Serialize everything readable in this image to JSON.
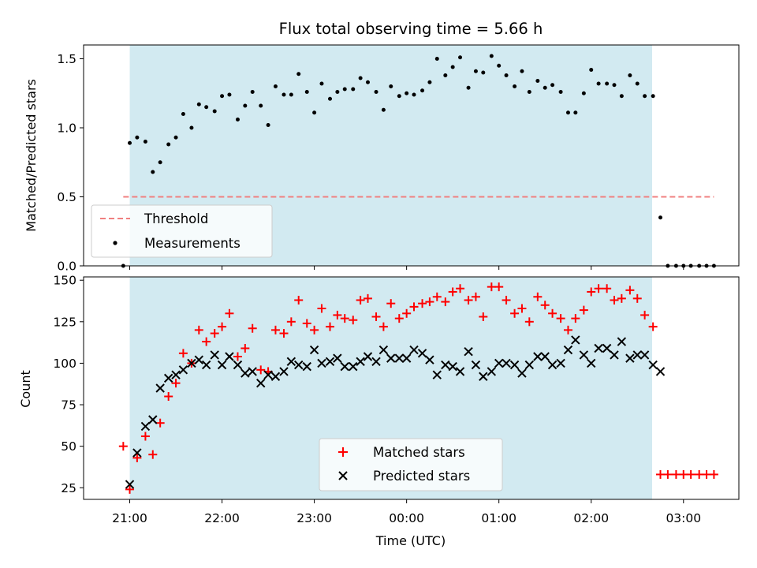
{
  "chart_data": [
    {
      "type": "scatter",
      "title": "Flux total observing time = 5.66 h",
      "xlabel": "",
      "ylabel": "Matched/Predicted stars",
      "ylim": [
        0,
        1.6
      ],
      "yticks": [
        "0.0",
        "0.5",
        "1.0",
        "1.5"
      ],
      "xlim": [
        20.5,
        27.6
      ],
      "shaded_interval": [
        21.0,
        26.66
      ],
      "shaded_color": "#add8e6",
      "legend_placement": "lower-left",
      "threshold": {
        "name": "Threshold",
        "value": 0.5,
        "x_range": [
          20.93,
          27.33
        ],
        "color": "#f08080"
      },
      "series": [
        {
          "name": "Measurements",
          "color": "#000000",
          "x": [
            20.93,
            21.0,
            21.08,
            21.17,
            21.25,
            21.33,
            21.42,
            21.5,
            21.58,
            21.67,
            21.75,
            21.83,
            21.92,
            22.0,
            22.08,
            22.17,
            22.25,
            22.33,
            22.42,
            22.5,
            22.58,
            22.67,
            22.75,
            22.83,
            22.92,
            23.0,
            23.08,
            23.17,
            23.25,
            23.33,
            23.42,
            23.5,
            23.58,
            23.67,
            23.75,
            23.83,
            23.92,
            24.0,
            24.08,
            24.17,
            24.25,
            24.33,
            24.42,
            24.5,
            24.58,
            24.67,
            24.75,
            24.83,
            24.92,
            25.0,
            25.08,
            25.17,
            25.25,
            25.33,
            25.42,
            25.5,
            25.58,
            25.67,
            25.75,
            25.83,
            25.92,
            26.0,
            26.08,
            26.17,
            26.25,
            26.33,
            26.42,
            26.5,
            26.58,
            26.67,
            26.75,
            26.83,
            26.92,
            27.0,
            27.08,
            27.17,
            27.25,
            27.33
          ],
          "y": [
            0.0,
            0.89,
            0.93,
            0.9,
            0.68,
            0.75,
            0.88,
            0.93,
            1.1,
            1.0,
            1.17,
            1.15,
            1.12,
            1.23,
            1.24,
            1.06,
            1.16,
            1.26,
            1.16,
            1.02,
            1.3,
            1.24,
            1.24,
            1.39,
            1.26,
            1.11,
            1.32,
            1.21,
            1.26,
            1.28,
            1.28,
            1.36,
            1.33,
            1.26,
            1.13,
            1.3,
            1.23,
            1.25,
            1.24,
            1.27,
            1.33,
            1.5,
            1.38,
            1.44,
            1.51,
            1.29,
            1.41,
            1.4,
            1.52,
            1.45,
            1.38,
            1.3,
            1.41,
            1.26,
            1.34,
            1.29,
            1.31,
            1.26,
            1.11,
            1.11,
            1.25,
            1.42,
            1.32,
            1.32,
            1.31,
            1.23,
            1.38,
            1.32,
            1.23,
            1.23,
            0.35,
            0.0,
            0.0,
            0.0,
            0.0,
            0.0,
            0.0,
            0.0
          ]
        }
      ]
    },
    {
      "type": "scatter",
      "title": "",
      "xlabel": "Time (UTC)",
      "ylabel": "Count",
      "ylim": [
        18,
        152
      ],
      "yticks": [
        "25",
        "50",
        "75",
        "100",
        "125",
        "150"
      ],
      "xlim": [
        20.5,
        27.6
      ],
      "xticks": [
        "21:00",
        "22:00",
        "23:00",
        "00:00",
        "01:00",
        "02:00",
        "03:00"
      ],
      "shaded_interval": [
        21.0,
        26.66
      ],
      "shaded_color": "#add8e6",
      "legend_placement": "lower-center",
      "series": [
        {
          "name": "Matched stars",
          "marker": "plus",
          "color": "#ff0000",
          "x": [
            20.93,
            21.0,
            21.08,
            21.17,
            21.25,
            21.33,
            21.42,
            21.5,
            21.58,
            21.67,
            21.75,
            21.83,
            21.92,
            22.0,
            22.08,
            22.17,
            22.25,
            22.33,
            22.42,
            22.5,
            22.58,
            22.67,
            22.75,
            22.83,
            22.92,
            23.0,
            23.08,
            23.17,
            23.25,
            23.33,
            23.42,
            23.5,
            23.58,
            23.67,
            23.75,
            23.83,
            23.92,
            24.0,
            24.08,
            24.17,
            24.25,
            24.33,
            24.42,
            24.5,
            24.58,
            24.67,
            24.75,
            24.83,
            24.92,
            25.0,
            25.08,
            25.17,
            25.25,
            25.33,
            25.42,
            25.5,
            25.58,
            25.67,
            25.75,
            25.83,
            25.92,
            26.0,
            26.08,
            26.17,
            26.25,
            26.33,
            26.42,
            26.5,
            26.58,
            26.67,
            26.75,
            26.83,
            26.92,
            27.0,
            27.08,
            27.17,
            27.25,
            27.33
          ],
          "y": [
            50,
            24,
            43,
            56,
            45,
            64,
            80,
            88,
            106,
            100,
            120,
            113,
            118,
            122,
            130,
            104,
            109,
            121,
            96,
            95,
            120,
            118,
            125,
            138,
            124,
            120,
            133,
            122,
            129,
            127,
            126,
            138,
            139,
            128,
            122,
            136,
            127,
            130,
            134,
            136,
            137,
            140,
            137,
            143,
            145,
            138,
            140,
            128,
            146,
            146,
            138,
            130,
            133,
            125,
            140,
            135,
            130,
            127,
            120,
            127,
            132,
            143,
            145,
            145,
            138,
            139,
            144,
            139,
            129,
            122,
            33,
            33,
            33,
            33,
            33,
            33,
            33,
            33
          ]
        },
        {
          "name": "Predicted stars",
          "marker": "x",
          "color": "#000000",
          "x": [
            21.0,
            21.08,
            21.17,
            21.25,
            21.33,
            21.42,
            21.5,
            21.58,
            21.67,
            21.75,
            21.83,
            21.92,
            22.0,
            22.08,
            22.17,
            22.25,
            22.33,
            22.42,
            22.5,
            22.58,
            22.67,
            22.75,
            22.83,
            22.92,
            23.0,
            23.08,
            23.17,
            23.25,
            23.33,
            23.42,
            23.5,
            23.58,
            23.67,
            23.75,
            23.83,
            23.92,
            24.0,
            24.08,
            24.17,
            24.25,
            24.33,
            24.42,
            24.5,
            24.58,
            24.67,
            24.75,
            24.83,
            24.92,
            25.0,
            25.08,
            25.17,
            25.25,
            25.33,
            25.42,
            25.5,
            25.58,
            25.67,
            25.75,
            25.83,
            25.92,
            26.0,
            26.08,
            26.17,
            26.25,
            26.33,
            26.42,
            26.5,
            26.58,
            26.67,
            26.75
          ],
          "y": [
            27,
            46,
            62,
            66,
            85,
            91,
            93,
            96,
            100,
            102,
            99,
            105,
            99,
            104,
            99,
            94,
            95,
            88,
            93,
            92,
            95,
            101,
            99,
            98,
            108,
            100,
            101,
            103,
            98,
            98,
            101,
            104,
            101,
            108,
            103,
            103,
            103,
            108,
            106,
            102,
            93,
            99,
            98,
            95,
            107,
            99,
            92,
            95,
            100,
            100,
            99,
            94,
            99,
            104,
            104,
            99,
            100,
            108,
            114,
            105,
            100,
            109,
            109,
            105,
            113,
            103,
            105,
            105,
            99,
            95
          ]
        }
      ]
    }
  ]
}
